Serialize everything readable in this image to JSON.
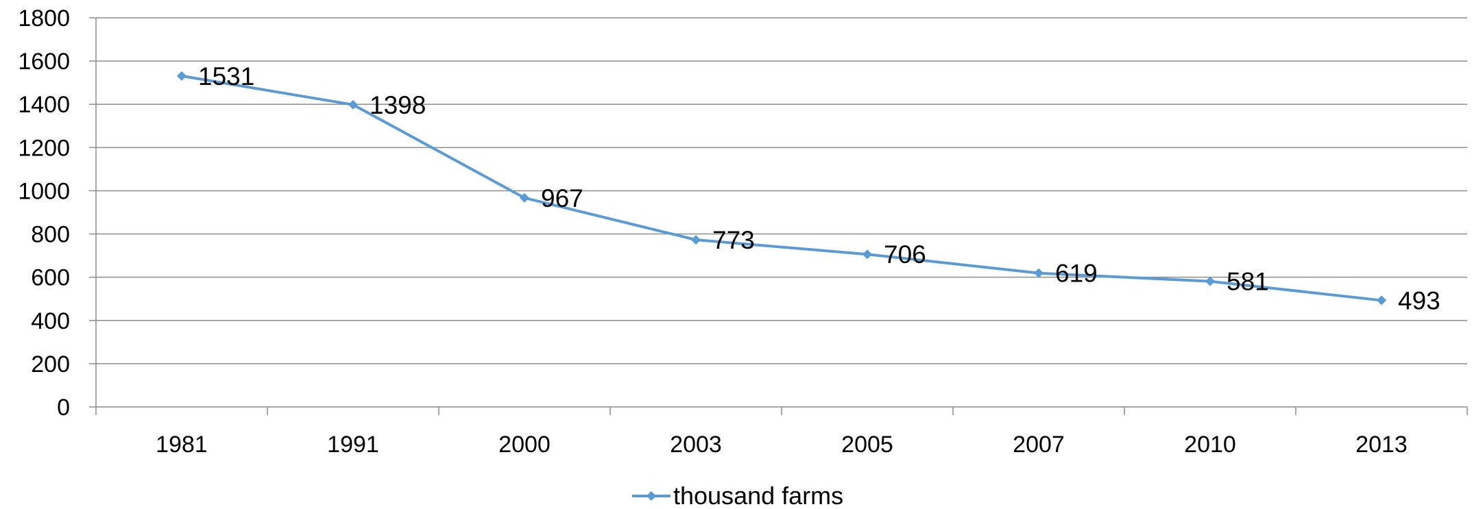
{
  "chart_data": {
    "type": "line",
    "categories": [
      "1981",
      "1991",
      "2000",
      "2003",
      "2005",
      "2007",
      "2010",
      "2013"
    ],
    "series": [
      {
        "name": "thousand farms",
        "values": [
          1531,
          1398,
          967,
          773,
          706,
          619,
          581,
          493
        ],
        "data_labels": [
          "1531",
          "1398",
          "967",
          "773",
          "706",
          "619",
          "581",
          "493"
        ],
        "color": "#5b9bd5",
        "marker": "diamond"
      }
    ],
    "ylim": [
      0,
      1800
    ],
    "yticks": [
      0,
      200,
      400,
      600,
      800,
      1000,
      1200,
      1400,
      1600,
      1800
    ],
    "ytick_labels": [
      "0",
      "200",
      "400",
      "600",
      "800",
      "1000",
      "1200",
      "1400",
      "1600",
      "1800"
    ],
    "grid": "horizontal",
    "legend": "bottom",
    "legend_label": "thousand farms",
    "gridline_color": "#8c8c8c",
    "axis_color": "#8c8c8c"
  }
}
